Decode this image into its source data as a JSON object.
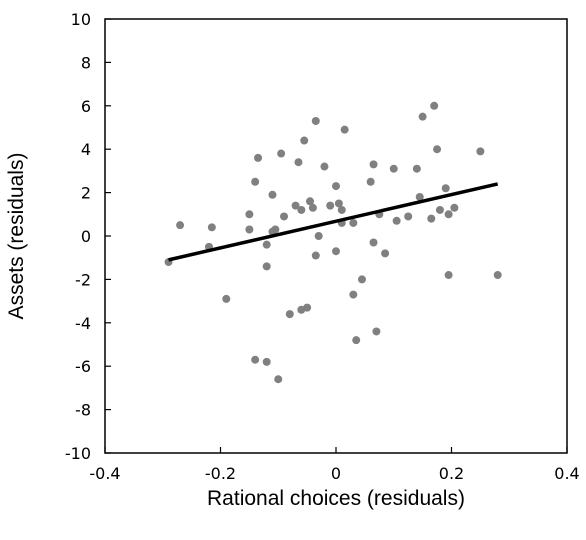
{
  "chart_data": {
    "type": "scatter",
    "xlabel": "Rational choices (residuals)",
    "ylabel": "Assets (residuals)",
    "xlim": [
      -0.4,
      0.4
    ],
    "ylim": [
      -10,
      10
    ],
    "xticks": [
      -0.4,
      -0.2,
      0,
      0.2,
      0.4
    ],
    "xtick_labels": [
      "-0.4",
      "-0.2",
      "0",
      "0.2",
      "0.4"
    ],
    "yticks": [
      -10,
      -8,
      -6,
      -4,
      -2,
      0,
      2,
      4,
      6,
      8,
      10
    ],
    "ytick_labels": [
      "-10",
      "-8",
      "-6",
      "-4",
      "-2",
      "0",
      "2",
      "4",
      "6",
      "8",
      "10"
    ],
    "grid": false,
    "legend": "none",
    "point_color": "#808080",
    "line_color": "#000000",
    "trendline": {
      "x": [
        -0.29,
        0.28
      ],
      "y": [
        -1.1,
        2.4
      ]
    },
    "points": [
      [
        -0.29,
        -1.2
      ],
      [
        -0.27,
        0.5
      ],
      [
        -0.22,
        -0.5
      ],
      [
        -0.215,
        0.4
      ],
      [
        -0.19,
        -2.9
      ],
      [
        -0.15,
        1.0
      ],
      [
        -0.15,
        0.3
      ],
      [
        -0.14,
        2.5
      ],
      [
        -0.135,
        3.6
      ],
      [
        -0.14,
        -5.7
      ],
      [
        -0.12,
        -0.4
      ],
      [
        -0.12,
        -1.4
      ],
      [
        -0.12,
        -5.8
      ],
      [
        -0.11,
        1.9
      ],
      [
        -0.11,
        0.2
      ],
      [
        -0.105,
        0.3
      ],
      [
        -0.1,
        -6.6
      ],
      [
        -0.095,
        3.8
      ],
      [
        -0.09,
        0.9
      ],
      [
        -0.08,
        -3.6
      ],
      [
        -0.07,
        1.4
      ],
      [
        -0.065,
        3.4
      ],
      [
        -0.06,
        1.2
      ],
      [
        -0.06,
        -3.4
      ],
      [
        -0.055,
        4.4
      ],
      [
        -0.05,
        -3.3
      ],
      [
        -0.045,
        1.6
      ],
      [
        -0.04,
        1.3
      ],
      [
        -0.035,
        5.3
      ],
      [
        -0.035,
        -0.9
      ],
      [
        -0.03,
        0.0
      ],
      [
        -0.02,
        3.2
      ],
      [
        -0.01,
        1.4
      ],
      [
        0.0,
        2.3
      ],
      [
        0.0,
        -0.7
      ],
      [
        0.005,
        1.5
      ],
      [
        0.01,
        0.6
      ],
      [
        0.01,
        1.2
      ],
      [
        0.015,
        4.9
      ],
      [
        0.03,
        0.6
      ],
      [
        0.03,
        -2.7
      ],
      [
        0.035,
        -4.8
      ],
      [
        0.045,
        -2.0
      ],
      [
        0.06,
        2.5
      ],
      [
        0.065,
        3.3
      ],
      [
        0.065,
        -0.3
      ],
      [
        0.07,
        -4.4
      ],
      [
        0.075,
        1.0
      ],
      [
        0.085,
        -0.8
      ],
      [
        0.1,
        3.1
      ],
      [
        0.105,
        0.7
      ],
      [
        0.125,
        0.9
      ],
      [
        0.14,
        3.1
      ],
      [
        0.145,
        1.8
      ],
      [
        0.15,
        5.5
      ],
      [
        0.165,
        0.8
      ],
      [
        0.17,
        6.0
      ],
      [
        0.175,
        4.0
      ],
      [
        0.18,
        1.2
      ],
      [
        0.19,
        2.2
      ],
      [
        0.195,
        1.0
      ],
      [
        0.195,
        -1.8
      ],
      [
        0.205,
        1.3
      ],
      [
        0.25,
        3.9
      ],
      [
        0.28,
        -1.8
      ]
    ]
  }
}
